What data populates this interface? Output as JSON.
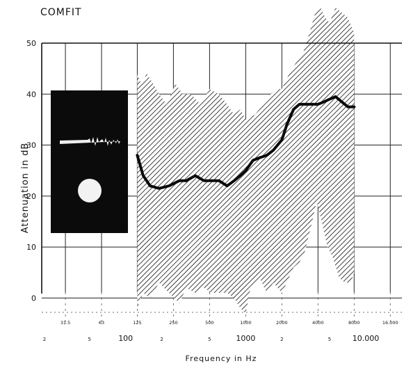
{
  "chart_data": {
    "type": "line",
    "title": "COMFIT",
    "xlabel": "Frequency in Hz",
    "ylabel": "Attenuation in dB",
    "xscale": "log",
    "xlim": [
      20,
      20000
    ],
    "ylim": [
      -5,
      50
    ],
    "grid": true,
    "y_ticks": [
      "0",
      "10",
      "20",
      "30",
      "40",
      "50"
    ],
    "octave_band_labels": [
      "31.5",
      "63",
      "125",
      "250",
      "500",
      "1000",
      "2000",
      "4000",
      "8000",
      "16.000"
    ],
    "log_axis_labels": [
      "2",
      "5",
      "100",
      "2",
      "5",
      "1000",
      "2",
      "5",
      "10.000"
    ],
    "series": [
      {
        "role": "mean attenuation",
        "x": [
          125,
          140,
          160,
          190,
          230,
          280,
          320,
          380,
          450,
          520,
          600,
          700,
          800,
          900,
          1000,
          1150,
          1300,
          1500,
          1700,
          2000,
          2200,
          2500,
          2800,
          3100,
          3500,
          4000,
          4500,
          5000,
          5600,
          6300,
          7100,
          8000
        ],
        "y": [
          28,
          24,
          22,
          21.5,
          22,
          23,
          23,
          24,
          23,
          23,
          23,
          22,
          23,
          24,
          25,
          27,
          27.5,
          28,
          29,
          31,
          34,
          37,
          38,
          38,
          38,
          38,
          38.5,
          39,
          39.5,
          38.5,
          37.5,
          37.5
        ]
      },
      {
        "role": "scatter band upper",
        "x": [
          125,
          135,
          150,
          170,
          190,
          220,
          260,
          300,
          350,
          420,
          500,
          600,
          700,
          800,
          900,
          1000,
          1200,
          1400,
          1600,
          1800,
          2000,
          2300,
          2600,
          3000,
          3400,
          3800,
          4200,
          4600,
          5000,
          5600,
          6300,
          7100,
          8000
        ],
        "y": [
          44,
          42,
          44,
          42,
          40,
          38,
          42,
          40,
          40,
          38,
          41,
          40,
          38,
          36,
          37,
          35,
          36,
          38,
          40,
          41,
          41,
          44,
          46,
          48,
          52,
          56,
          57,
          55,
          54,
          57,
          56,
          55,
          52
        ]
      },
      {
        "role": "scatter band lower",
        "x": [
          125,
          140,
          160,
          190,
          230,
          280,
          320,
          380,
          450,
          520,
          600,
          700,
          800,
          900,
          1000,
          1100,
          1300,
          1500,
          1700,
          2000,
          2200,
          2500,
          2800,
          3100,
          3500,
          3900,
          4300,
          4800,
          5300,
          6000,
          6700,
          7500,
          8000
        ],
        "y": [
          -2,
          1,
          0,
          3,
          1,
          -1,
          2,
          1,
          2,
          1,
          1,
          1,
          0,
          -2,
          -3,
          2,
          4,
          1,
          3,
          1,
          3,
          6,
          7,
          9,
          14,
          19,
          15,
          10,
          8,
          4,
          3,
          3,
          5
        ]
      }
    ]
  }
}
